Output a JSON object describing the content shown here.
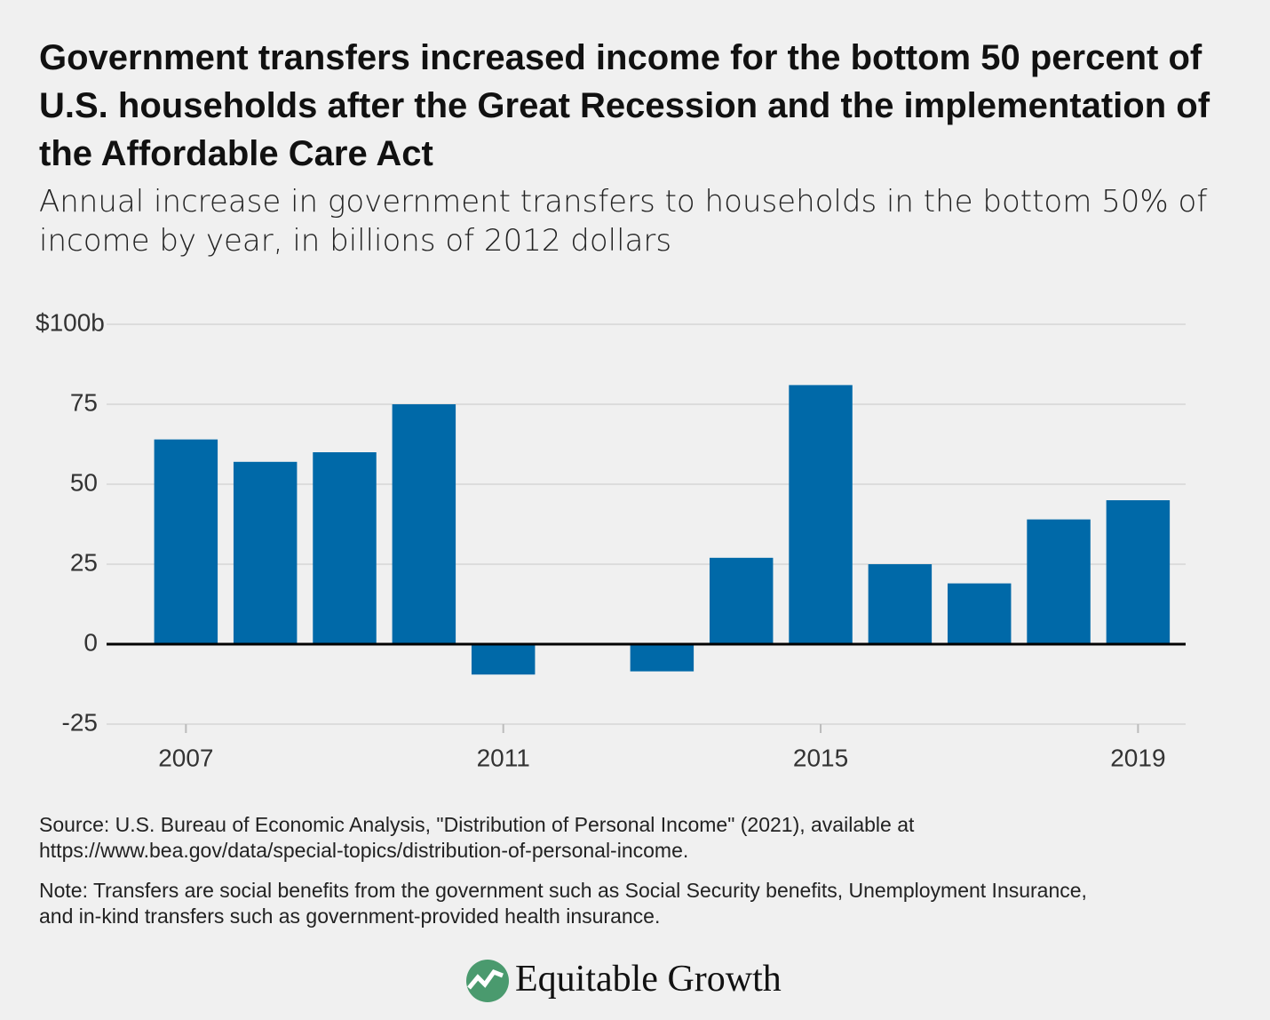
{
  "chart_data": {
    "type": "bar",
    "title": "Government transfers increased income for the bottom 50 percent of U.S. households after the Great Recession and the implementation of the Affordable Care Act",
    "subtitle": "Annual increase in government transfers to households in the bottom 50% of income by year, in billions of 2012 dollars",
    "x": [
      2007,
      2008,
      2009,
      2010,
      2011,
      2012,
      2013,
      2014,
      2015,
      2016,
      2017,
      2018,
      2019
    ],
    "values": [
      64,
      57,
      60,
      75,
      -9.5,
      0,
      -8.5,
      27,
      81,
      25,
      19,
      39,
      45
    ],
    "color": "#0069a8",
    "xlim": [
      2006,
      2019.6
    ],
    "xticks": [
      2007,
      2011,
      2015,
      2019
    ],
    "ylim": [
      -25,
      100
    ],
    "yticks": [
      -25,
      0,
      25,
      50,
      75,
      {
        "value": 100,
        "label": "$100b"
      }
    ],
    "grid": true,
    "source": "Source: U.S. Bureau of Economic Analysis, \"Distribution of Personal Income\" (2021), available at https://www.bea.gov/data/special-topics/distribution-of-personal-income.",
    "note": "Note: Transfers are social benefits from the government such as Social Security benefits, Unemployment Insurance, and in-kind transfers such as government-provided health insurance.",
    "logo": "Equitable Growth"
  }
}
